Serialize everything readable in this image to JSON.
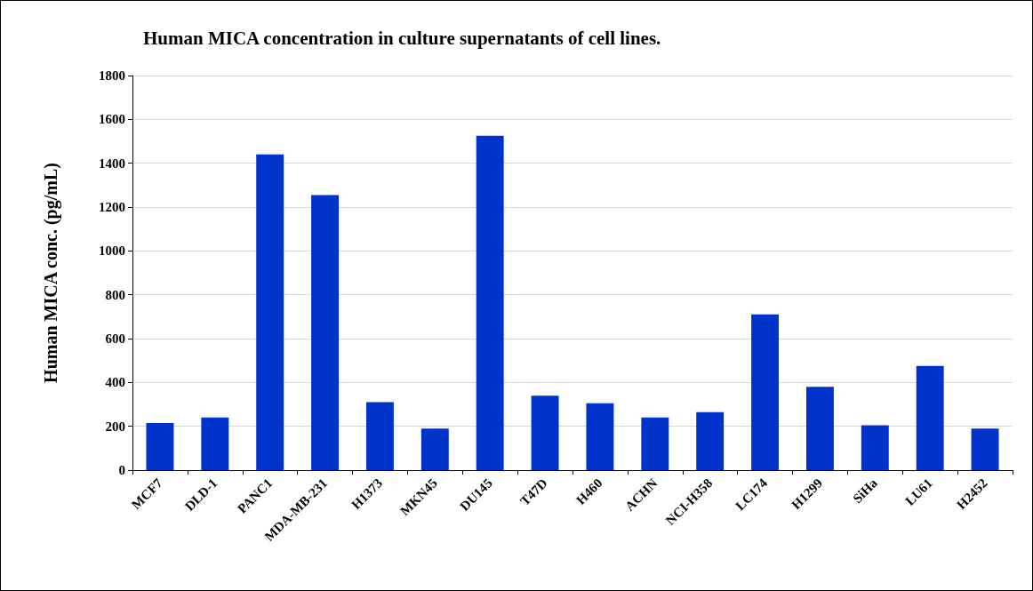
{
  "chart_data": {
    "type": "bar",
    "title": "Human MICA concentration in culture supernatants of cell lines.",
    "ylabel": "Human MICA conc. (pg/mL)",
    "categories": [
      "MCF7",
      "DLD-1",
      "PANC1",
      "MDA-MB-231",
      "H1373",
      "MKN45",
      "DU145",
      "T47D",
      "H460",
      "ACHN",
      "NCI-H358",
      "LC174",
      "H1299",
      "SiHa",
      "LU61",
      "H2452"
    ],
    "values": [
      215,
      240,
      1440,
      1255,
      310,
      190,
      1525,
      340,
      305,
      240,
      265,
      710,
      380,
      205,
      475,
      190
    ],
    "color": "#0033cc",
    "ylim": [
      0,
      1800
    ],
    "yticks": [
      0,
      200,
      400,
      600,
      800,
      1000,
      1200,
      1400,
      1600,
      1800
    ],
    "grid": "y"
  }
}
